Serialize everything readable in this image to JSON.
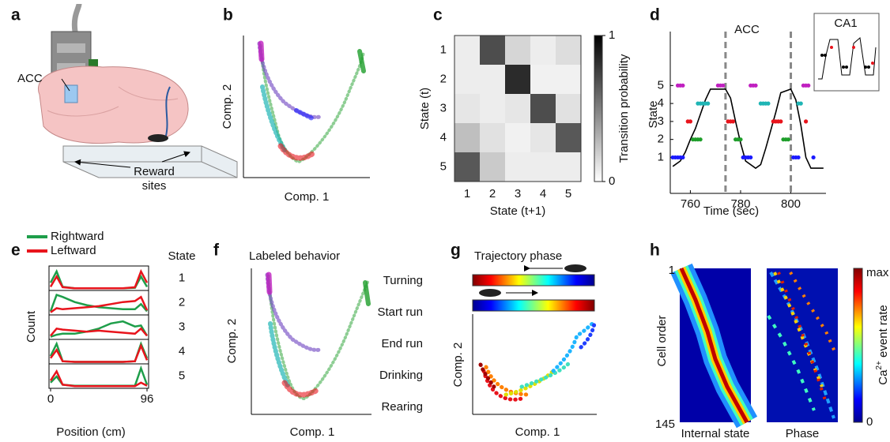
{
  "panels": {
    "a": {
      "label": "a",
      "region": "ACC",
      "reward": [
        "Reward",
        "sites"
      ]
    },
    "b": {
      "label": "b",
      "x_label": "Comp. 1",
      "y_label": "Comp. 2"
    },
    "f": {
      "label": "f",
      "title": "Labeled behavior",
      "x_label": "Comp. 1",
      "y_label": "Comp. 2",
      "legend": [
        {
          "label": "Turning",
          "color": "#1a1aff"
        },
        {
          "label": "Start run",
          "color": "#1e9e2a"
        },
        {
          "label": "End run",
          "color": "#e8141c"
        },
        {
          "label": "Drinking",
          "color": "#1fb5b5"
        },
        {
          "label": "Rearing",
          "color": "#c020c0"
        }
      ]
    },
    "g": {
      "label": "g",
      "title": "Trajectory phase",
      "x_label": "Comp. 1",
      "y_label": "Comp. 2"
    },
    "h": {
      "label": "h",
      "y_label": "Cell order",
      "y_ticks": [
        1,
        145
      ],
      "x_labels": [
        "Internal state",
        "Phase"
      ],
      "colorbar_ticks": [
        "max",
        "0"
      ],
      "colorbar_label": [
        "Ca",
        "2+",
        " event rate"
      ]
    }
  },
  "chart_data": [
    {
      "type": "heatmap",
      "label": "c",
      "x_label": "State (t+1)",
      "y_label": "State (t)",
      "x_categories": [
        1,
        2,
        3,
        4,
        5
      ],
      "y_categories": [
        1,
        2,
        3,
        4,
        5
      ],
      "values": [
        [
          0.05,
          0.75,
          0.15,
          0.05,
          0.12
        ],
        [
          0.05,
          0.05,
          0.9,
          0.03,
          0.03
        ],
        [
          0.08,
          0.05,
          0.08,
          0.75,
          0.1
        ],
        [
          0.25,
          0.1,
          0.03,
          0.08,
          0.7
        ],
        [
          0.7,
          0.2,
          0.05,
          0.05,
          0.05
        ]
      ],
      "colorbar": {
        "label": "Transition probability",
        "lim": [
          0,
          1
        ],
        "ticks": [
          0,
          1
        ]
      }
    },
    {
      "type": "line",
      "label": "d",
      "title": "ACC",
      "inset_title": "CA1",
      "x_label": "Time (sec)",
      "y_label": "State",
      "xlim": [
        752,
        814
      ],
      "xticks": [
        760,
        780,
        800
      ],
      "ylim": [
        -1,
        8
      ],
      "yticks": [
        1,
        2,
        3,
        4,
        5
      ],
      "x": [
        753,
        756,
        758,
        760,
        762,
        764,
        766,
        768,
        774,
        776,
        778,
        780,
        782,
        786,
        788,
        790,
        792,
        794,
        796,
        800,
        802,
        804,
        806,
        808,
        813
      ],
      "values": [
        0.5,
        0.8,
        1.3,
        2,
        2.6,
        3.4,
        4.2,
        4.8,
        4.8,
        4.3,
        3,
        1.8,
        0.8,
        0.4,
        0.6,
        1.5,
        2.5,
        3.5,
        4.6,
        4.8,
        4.2,
        2.8,
        1,
        0.4,
        0.4
      ],
      "color": "#000000",
      "vlines": [
        774,
        800
      ],
      "series": [
        {
          "color": "#c020c0",
          "x": [
            755,
            756,
            757,
            771,
            772,
            773,
            784,
            785,
            786,
            805,
            806,
            807
          ],
          "values": [
            5,
            5,
            5,
            5,
            5,
            5,
            5,
            5,
            5,
            5,
            5,
            5
          ]
        },
        {
          "color": "#1fb5b5",
          "x": [
            763,
            764,
            765,
            766,
            767,
            788,
            789,
            790,
            791,
            803,
            804
          ],
          "values": [
            4,
            4,
            4,
            4,
            4,
            4,
            4,
            4,
            4,
            4,
            4
          ]
        },
        {
          "color": "#e8141c",
          "x": [
            759,
            760,
            775,
            776,
            777,
            793,
            794,
            795,
            796,
            806
          ],
          "values": [
            3,
            3,
            3,
            3,
            3,
            3,
            3,
            3,
            3,
            3
          ]
        },
        {
          "color": "#1e9e2a",
          "x": [
            761,
            762,
            763,
            764,
            778,
            779,
            780,
            797,
            798,
            799
          ],
          "values": [
            2,
            2,
            2,
            2,
            2,
            2,
            2,
            2,
            2,
            2
          ]
        },
        {
          "color": "#1a1aff",
          "x": [
            753,
            754,
            755,
            756,
            757,
            781,
            782,
            783,
            784,
            801,
            802,
            803,
            809
          ],
          "values": [
            1,
            1,
            1,
            1,
            1,
            1,
            1,
            1,
            1,
            1,
            1,
            1,
            1
          ]
        }
      ]
    },
    {
      "type": "multi-line",
      "label": "e",
      "x_label": "Position (cm)",
      "y_label": "Count",
      "xlim": [
        0,
        96
      ],
      "xticks": [
        0,
        96
      ],
      "ylim": [
        0,
        1
      ],
      "x": [
        0,
        6,
        12,
        24,
        36,
        48,
        60,
        72,
        84,
        90,
        96
      ],
      "states_title": "State",
      "states": [
        1,
        2,
        3,
        4,
        5
      ],
      "state_colors": [
        "#1a1aff",
        "#1e9e2a",
        "#e8141c",
        "#1fb5b5",
        "#c020c0"
      ],
      "series": [
        {
          "name": "Rightward",
          "color": "#1e9e4a",
          "values": [
            [
              0.3,
              0.85,
              0.1,
              0.03,
              0.03,
              0.03,
              0.03,
              0.03,
              0.05,
              0.6,
              0.1
            ],
            [
              0.1,
              0.9,
              0.8,
              0.55,
              0.4,
              0.3,
              0.25,
              0.2,
              0.2,
              0.45,
              0.1
            ],
            [
              0.05,
              0.15,
              0.2,
              0.2,
              0.3,
              0.45,
              0.7,
              0.8,
              0.55,
              0.6,
              0.1
            ],
            [
              0.3,
              0.9,
              0.05,
              0.02,
              0.02,
              0.02,
              0.02,
              0.02,
              0.05,
              0.9,
              0.2
            ],
            [
              0.2,
              0.5,
              0.1,
              0.05,
              0.05,
              0.05,
              0.05,
              0.05,
              0.05,
              0.9,
              0.1
            ]
          ]
        },
        {
          "name": "Leftward",
          "color": "#e8141c",
          "values": [
            [
              0.1,
              0.6,
              0.08,
              0.03,
              0.03,
              0.03,
              0.03,
              0.03,
              0.08,
              0.85,
              0.3
            ],
            [
              0.05,
              0.25,
              0.2,
              0.25,
              0.3,
              0.35,
              0.45,
              0.55,
              0.6,
              0.8,
              0.15
            ],
            [
              0.1,
              0.45,
              0.4,
              0.35,
              0.3,
              0.35,
              0.3,
              0.25,
              0.2,
              0.45,
              0.1
            ],
            [
              0.2,
              0.6,
              0.05,
              0.02,
              0.02,
              0.02,
              0.02,
              0.02,
              0.05,
              0.8,
              0.1
            ],
            [
              0.3,
              0.75,
              0.1,
              0.03,
              0.03,
              0.03,
              0.03,
              0.03,
              0.03,
              0.2,
              0.05
            ]
          ]
        }
      ]
    }
  ]
}
